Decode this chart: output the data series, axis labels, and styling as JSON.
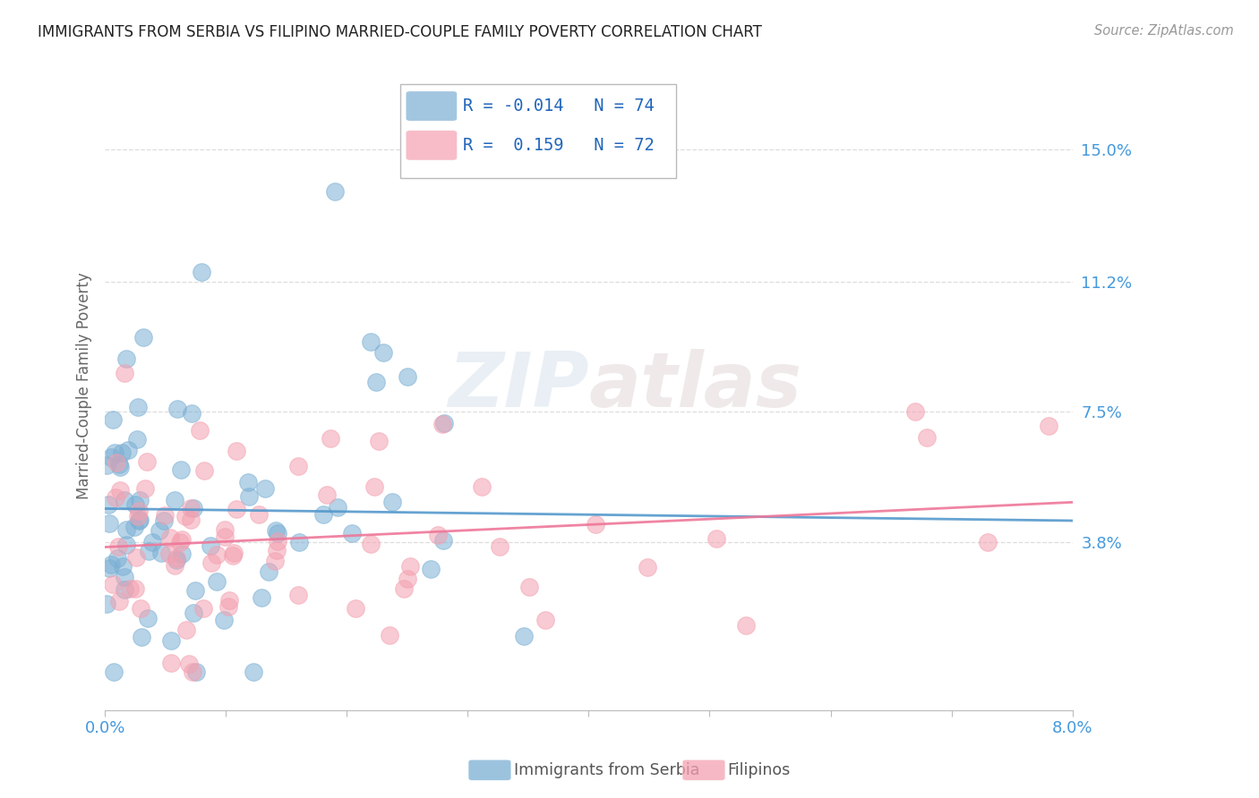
{
  "title": "IMMIGRANTS FROM SERBIA VS FILIPINO MARRIED-COUPLE FAMILY POVERTY CORRELATION CHART",
  "source": "Source: ZipAtlas.com",
  "ylabel": "Married-Couple Family Poverty",
  "xlim": [
    0.0,
    0.08
  ],
  "ylim": [
    -0.01,
    0.175
  ],
  "yticks": [
    0.038,
    0.075,
    0.112,
    0.15
  ],
  "ytick_labels": [
    "3.8%",
    "7.5%",
    "11.2%",
    "15.0%"
  ],
  "xticks": [
    0.0,
    0.01,
    0.02,
    0.03,
    0.04,
    0.05,
    0.06,
    0.07,
    0.08
  ],
  "xtick_labels": [
    "0.0%",
    "",
    "",
    "",
    "",
    "",
    "",
    "",
    "8.0%"
  ],
  "legend_labels": [
    "Immigrants from Serbia",
    "Filipinos"
  ],
  "legend_R": [
    "-0.014",
    "0.159"
  ],
  "legend_N": [
    "74",
    "72"
  ],
  "color_serbia": "#7BAFD4",
  "color_filipinos": "#F4A0B0",
  "color_axis_labels": "#4499DD",
  "background_color": "#FFFFFF",
  "serbia_trend_color": "#5599CC",
  "filipino_trend_color": "#EE7799",
  "watermark_color": "#DDEEFF",
  "grid_color": "#DDDDDD"
}
